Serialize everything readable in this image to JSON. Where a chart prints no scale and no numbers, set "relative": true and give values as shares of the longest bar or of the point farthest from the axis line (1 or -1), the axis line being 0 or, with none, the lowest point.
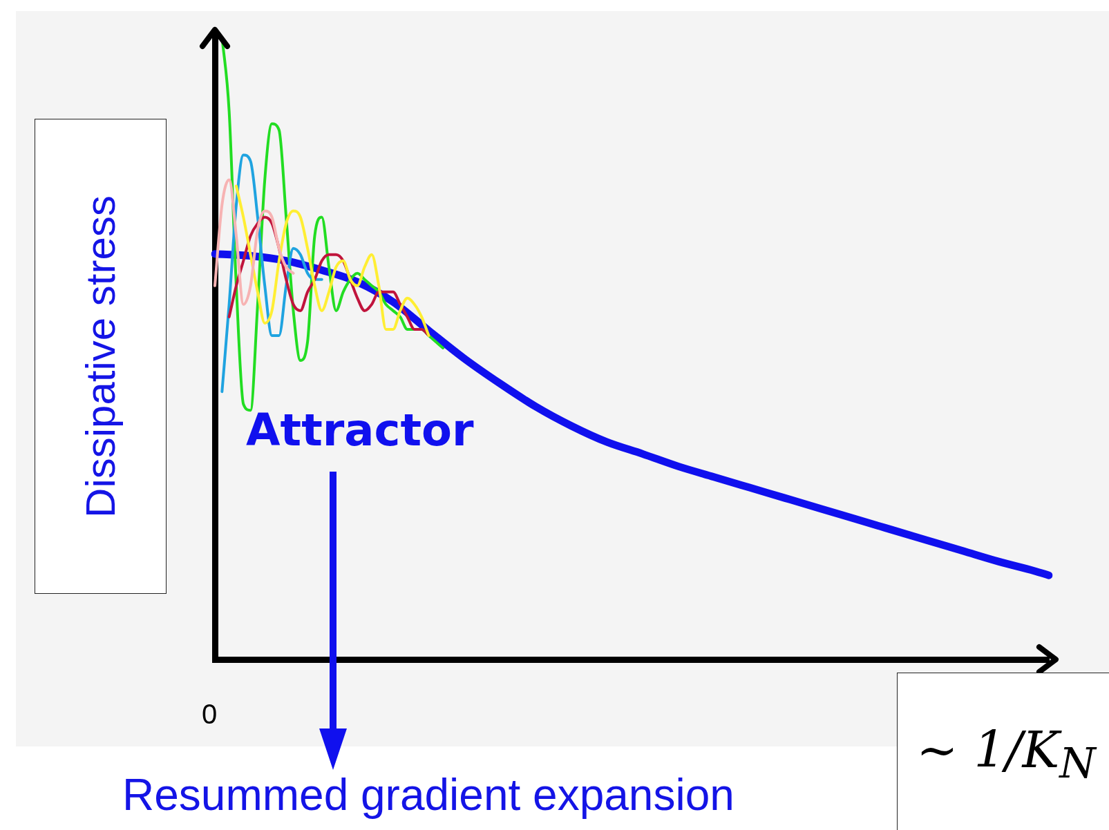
{
  "chart_data": {
    "type": "line",
    "relative": true,
    "marker": "none",
    "xlabel": "∼ 1/K$_{N}$",
    "ylabel": "Dissipative stress",
    "annotations": [
      "0",
      "Resummed gradient expansion"
    ],
    "categories": [
      null,
      null,
      null,
      null,
      null,
      null,
      null,
      null,
      null,
      null,
      null,
      null,
      null,
      null,
      null,
      null,
      null,
      null,
      null,
      null,
      null,
      null,
      null,
      null,
      null,
      null,
      null,
      null,
      null,
      null,
      null,
      null,
      null,
      null,
      null,
      null,
      null,
      null,
      null,
      null,
      null,
      null,
      null,
      null,
      null,
      null,
      null,
      null,
      null,
      null,
      null,
      null,
      null,
      null,
      null,
      null,
      null,
      null,
      null,
      null,
      null,
      null,
      null,
      null,
      null,
      null,
      null,
      null,
      null,
      null,
      null,
      null,
      null,
      null,
      null,
      null,
      null,
      null,
      null,
      null,
      null,
      null,
      null,
      null,
      null,
      null,
      null,
      null,
      null,
      null,
      null,
      null,
      null,
      null,
      null,
      null,
      null,
      null,
      null,
      null,
      null,
      null,
      null,
      null,
      null,
      null,
      null,
      null,
      null,
      null,
      null,
      null,
      null,
      null,
      null,
      null,
      null,
      null
    ],
    "series": [
      {
        "color": "#f7b3b3",
        "values": [
          0.6,
          0.73,
          0.77,
          0.68,
          0.57,
          0.6,
          0.69,
          0.72,
          0.71,
          0.66,
          0.63,
          0.62,
          null,
          null,
          null,
          null,
          null,
          null,
          null,
          null,
          null,
          null,
          null,
          null,
          null,
          null,
          null,
          null,
          null,
          null,
          null,
          null,
          null,
          null,
          null,
          null,
          null,
          null,
          null,
          null,
          null,
          null,
          null,
          null,
          null,
          null,
          null,
          null,
          null,
          null,
          null,
          null,
          null,
          null,
          null,
          null,
          null,
          null,
          null,
          null,
          null,
          null,
          null,
          null,
          null,
          null,
          null,
          null,
          null,
          null,
          null,
          null,
          null,
          null,
          null,
          null,
          null,
          null,
          null,
          null,
          null,
          null,
          null,
          null,
          null,
          null,
          null,
          null,
          null,
          null,
          null,
          null,
          null,
          null,
          null,
          null,
          null,
          null,
          null,
          null,
          null,
          null,
          null,
          null,
          null,
          null,
          null,
          null,
          null,
          null,
          null,
          null,
          null,
          null,
          null,
          null,
          null,
          null
        ]
      },
      {
        "color": "#ffee33",
        "values": [
          null,
          null,
          null,
          0.76,
          0.71,
          0.65,
          0.59,
          0.54,
          0.56,
          0.64,
          0.7,
          0.72,
          0.71,
          0.66,
          0.6,
          0.56,
          0.59,
          0.63,
          0.64,
          0.61,
          0.6,
          0.63,
          0.65,
          0.6,
          0.53,
          0.53,
          0.56,
          0.58,
          0.57,
          0.55,
          0.52,
          null,
          null,
          null,
          null,
          null,
          null,
          null,
          null,
          null,
          null,
          null,
          null,
          null,
          null,
          null,
          null,
          null,
          null,
          null,
          null,
          null,
          null,
          null,
          null,
          null,
          null,
          null,
          null,
          null,
          null,
          null,
          null,
          null,
          null,
          null,
          null,
          null,
          null,
          null,
          null,
          null,
          null,
          null,
          null,
          null,
          null,
          null,
          null,
          null,
          null,
          null,
          null,
          null,
          null,
          null,
          null,
          null,
          null,
          null,
          null,
          null,
          null,
          null,
          null,
          null,
          null,
          null,
          null,
          null,
          null,
          null,
          null,
          null,
          null,
          null,
          null,
          null,
          null,
          null,
          null,
          null,
          null,
          null,
          null,
          null,
          null,
          null
        ]
      },
      {
        "color": "#c0143c",
        "values": [
          null,
          null,
          0.55,
          0.6,
          0.64,
          0.68,
          0.7,
          0.71,
          0.7,
          0.66,
          0.61,
          0.57,
          0.56,
          0.59,
          0.61,
          0.64,
          0.65,
          0.65,
          0.64,
          0.61,
          0.58,
          0.56,
          0.57,
          0.59,
          0.59,
          0.59,
          0.57,
          0.55,
          0.53,
          0.53,
          0.52,
          null,
          null,
          null,
          null,
          null,
          null,
          null,
          null,
          null,
          null,
          null,
          null,
          null,
          null,
          null,
          null,
          null,
          null,
          null,
          null,
          null,
          null,
          null,
          null,
          null,
          null,
          null,
          null,
          null,
          null,
          null,
          null,
          null,
          null,
          null,
          null,
          null,
          null,
          null,
          null,
          null,
          null,
          null,
          null,
          null,
          null,
          null,
          null,
          null,
          null,
          null,
          null,
          null,
          null,
          null,
          null,
          null,
          null,
          null,
          null,
          null,
          null,
          null,
          null,
          null,
          null,
          null,
          null,
          null,
          null,
          null,
          null,
          null,
          null,
          null,
          null,
          null,
          null,
          null,
          null,
          null,
          null,
          null,
          null,
          null,
          null,
          null
        ]
      },
      {
        "color": "#1fa3e0",
        "values": [
          null,
          0.43,
          0.57,
          0.73,
          0.81,
          0.8,
          0.71,
          0.6,
          0.52,
          0.52,
          0.6,
          0.66,
          0.65,
          0.62,
          0.61,
          0.61,
          null,
          null,
          null,
          null,
          null,
          null,
          null,
          null,
          null,
          null,
          null,
          null,
          null,
          null,
          null,
          null,
          null,
          null,
          null,
          null,
          null,
          null,
          null,
          null,
          null,
          null,
          null,
          null,
          null,
          null,
          null,
          null,
          null,
          null,
          null,
          null,
          null,
          null,
          null,
          null,
          null,
          null,
          null,
          null,
          null,
          null,
          null,
          null,
          null,
          null,
          null,
          null,
          null,
          null,
          null,
          null,
          null,
          null,
          null,
          null,
          null,
          null,
          null,
          null,
          null,
          null,
          null,
          null,
          null,
          null,
          null,
          null,
          null,
          null,
          null,
          null,
          null,
          null,
          null,
          null,
          null,
          null,
          null,
          null,
          null,
          null,
          null,
          null,
          null,
          null,
          null,
          null,
          null,
          null,
          null,
          null,
          null,
          null,
          null,
          null,
          null,
          null
        ]
      },
      {
        "color": "#22dd22",
        "values": [
          null,
          1.0,
          0.88,
          0.6,
          0.41,
          0.4,
          0.57,
          0.77,
          0.86,
          0.85,
          0.71,
          0.56,
          0.48,
          0.51,
          0.68,
          0.71,
          0.63,
          0.56,
          0.59,
          0.61,
          0.62,
          0.61,
          0.6,
          0.59,
          0.57,
          0.56,
          0.55,
          0.53,
          0.53,
          0.53,
          0.52,
          0.51,
          0.5,
          null,
          null,
          null,
          null,
          null,
          null,
          null,
          null,
          null,
          null,
          null,
          null,
          null,
          null,
          null,
          null,
          null,
          null,
          null,
          null,
          null,
          null,
          null,
          null,
          null,
          null,
          null,
          null,
          null,
          null,
          null,
          null,
          null,
          null,
          null,
          null,
          null,
          null,
          null,
          null,
          null,
          null,
          null,
          null,
          null,
          null,
          null,
          null,
          null,
          null,
          null,
          null,
          null,
          null,
          null,
          null,
          null,
          null,
          null,
          null,
          null,
          null,
          null,
          null,
          null,
          null,
          null,
          null,
          null,
          null,
          null,
          null,
          null,
          null,
          null,
          null,
          null,
          null,
          null,
          null,
          null,
          null,
          null,
          null,
          null
        ]
      },
      {
        "name": "Attractor",
        "color": "#1010ee",
        "values": [
          0.651,
          null,
          null,
          null,
          null,
          0.648,
          null,
          null,
          null,
          null,
          0.64,
          null,
          null,
          null,
          null,
          0.625,
          null,
          null,
          null,
          null,
          0.606,
          null,
          null,
          null,
          null,
          0.574,
          null,
          null,
          null,
          null,
          0.528,
          null,
          null,
          null,
          null,
          0.483,
          null,
          null,
          null,
          null,
          0.443,
          null,
          null,
          null,
          null,
          0.406,
          null,
          null,
          null,
          null,
          0.375,
          null,
          null,
          null,
          null,
          0.349,
          null,
          null,
          null,
          null,
          0.33,
          null,
          null,
          null,
          null,
          0.31,
          null,
          null,
          null,
          null,
          0.293,
          null,
          null,
          null,
          null,
          0.276,
          null,
          null,
          null,
          null,
          0.259,
          null,
          null,
          null,
          null,
          0.242,
          null,
          null,
          null,
          null,
          0.225,
          null,
          null,
          null,
          null,
          0.208,
          null,
          null,
          null,
          null,
          0.191,
          null,
          null,
          null,
          null,
          0.174,
          null,
          null,
          null,
          null,
          0.157,
          null,
          null,
          null,
          null,
          0.142,
          null,
          0.135
        ]
      }
    ]
  }
}
